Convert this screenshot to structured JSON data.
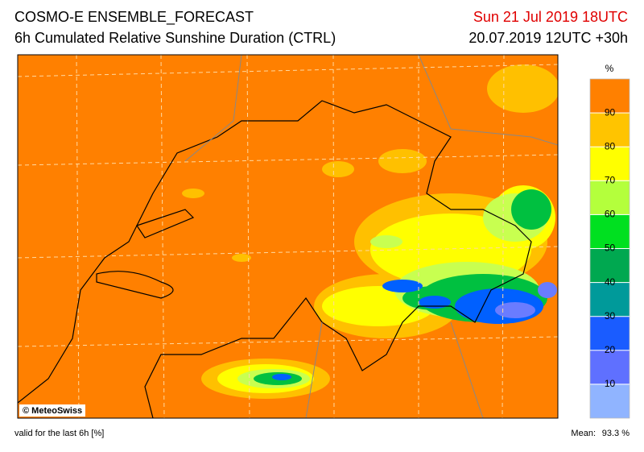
{
  "header": {
    "title": "COSMO-E ENSEMBLE_FORECAST",
    "subtitle": "6h Cumulated Relative Sunshine Duration (CTRL)",
    "date": "Sun 21 Jul 2019 18UTC",
    "run": "20.07.2019 12UTC +30h"
  },
  "colorbar": {
    "unit": "%",
    "ticks": [
      10,
      20,
      30,
      40,
      50,
      60,
      70,
      80,
      90
    ],
    "colors": [
      "#90b4ff",
      "#5f70ff",
      "#1a5cff",
      "#009a9a",
      "#00a850",
      "#00e020",
      "#b4ff3c",
      "#ffff00",
      "#ffc400",
      "#ff8000"
    ]
  },
  "copyright": "© MeteoSwiss",
  "footer": {
    "valid": "valid for the last 6h [%]",
    "mean_label": "Mean:",
    "mean_value": "93.3 %"
  }
}
